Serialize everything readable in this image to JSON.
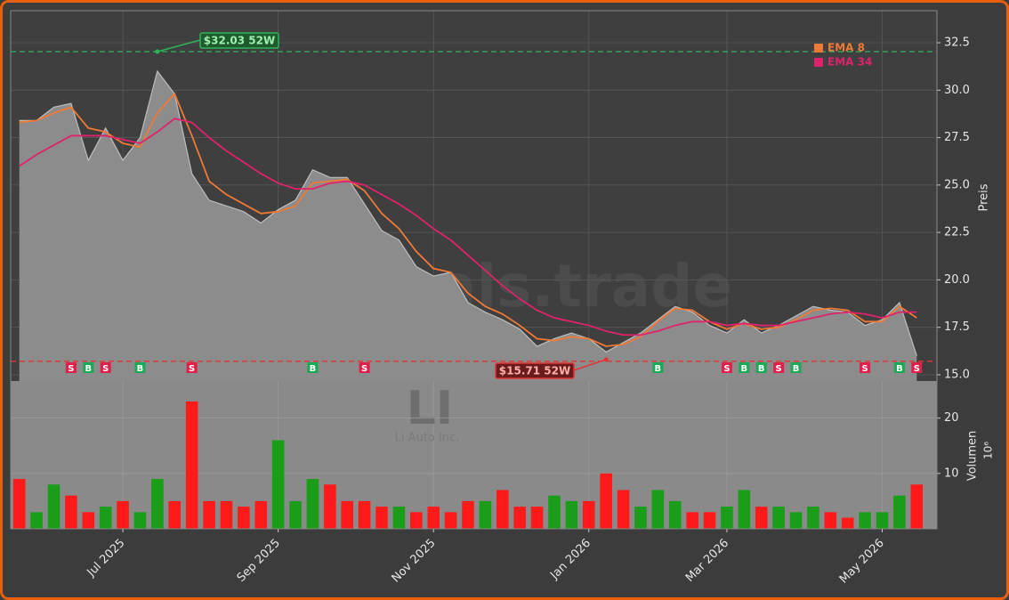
{
  "chart_data": [
    {
      "type": "area",
      "categories": [
        null,
        null,
        null,
        null,
        null,
        null,
        "Jul 2025",
        null,
        null,
        null,
        null,
        null,
        null,
        null,
        null,
        "Sep 2025",
        null,
        null,
        null,
        null,
        null,
        null,
        null,
        null,
        "Nov 2025",
        null,
        null,
        null,
        null,
        null,
        null,
        null,
        null,
        "Jan 2026",
        null,
        null,
        null,
        null,
        null,
        null,
        null,
        "Mar 2026",
        null,
        null,
        null,
        null,
        null,
        null,
        null,
        null,
        "May 2026",
        null,
        null
      ],
      "series": [
        {
          "color": "#8c8c8c",
          "values": [
            28.4,
            28.4,
            29.1,
            29.3,
            26.3,
            28.0,
            26.3,
            27.5,
            31.0,
            29.8,
            25.6,
            24.2,
            23.9,
            23.6,
            23.0,
            23.7,
            24.2,
            25.8,
            25.4,
            25.4,
            24.0,
            22.6,
            22.1,
            20.7,
            20.2,
            20.4,
            18.8,
            18.3,
            17.9,
            17.4,
            16.5,
            16.9,
            17.2,
            16.9,
            16.2,
            16.7,
            17.2,
            17.9,
            18.6,
            18.3,
            17.6,
            17.2,
            17.9,
            17.2,
            17.6,
            18.1,
            18.6,
            18.4,
            18.3,
            17.6,
            17.9,
            18.8,
            16.0
          ]
        },
        {
          "name": "EMA 8",
          "color": "#f07a35",
          "values": [
            28.3,
            28.4,
            28.8,
            29.1,
            28.0,
            27.8,
            27.2,
            27.0,
            28.8,
            29.8,
            27.6,
            25.2,
            24.5,
            24.0,
            23.5,
            23.6,
            23.9,
            25.1,
            25.2,
            25.3,
            24.7,
            23.5,
            22.7,
            21.5,
            20.6,
            20.4,
            19.3,
            18.6,
            18.2,
            17.6,
            16.9,
            16.8,
            17.0,
            16.9,
            16.5,
            16.6,
            17.0,
            17.8,
            18.5,
            18.4,
            17.8,
            17.4,
            17.7,
            17.4,
            17.5,
            17.9,
            18.4,
            18.5,
            18.4,
            17.8,
            17.8,
            18.6,
            18.0
          ]
        },
        {
          "name": "EMA 34",
          "color": "#e0226c",
          "values": [
            26.0,
            26.6,
            27.1,
            27.6,
            27.6,
            27.6,
            27.4,
            27.2,
            27.8,
            28.5,
            28.3,
            27.5,
            26.8,
            26.2,
            25.6,
            25.1,
            24.8,
            24.8,
            25.1,
            25.2,
            25.0,
            24.5,
            24.0,
            23.4,
            22.7,
            22.1,
            21.3,
            20.5,
            19.7,
            19.0,
            18.4,
            18.0,
            17.8,
            17.6,
            17.3,
            17.1,
            17.1,
            17.3,
            17.6,
            17.8,
            17.8,
            17.6,
            17.7,
            17.6,
            17.6,
            17.8,
            18.0,
            18.2,
            18.3,
            18.2,
            18.0,
            18.3,
            18.3
          ]
        }
      ],
      "ylabel": "Preis",
      "ylim": [
        14.67,
        34.19
      ],
      "yticks": [
        {
          "value": 15,
          "label": "15.0"
        },
        17.5,
        {
          "value": 20,
          "label": "20.0"
        },
        22.5,
        {
          "value": 25,
          "label": "25.0"
        },
        27.5,
        {
          "value": 30,
          "label": "30.0"
        },
        32.5
      ],
      "grid": true,
      "legend": "top-right",
      "high": {
        "value": 32.03,
        "label": "$32.03 52W"
      },
      "low": {
        "value": 15.71,
        "label": "$15.71 52W"
      },
      "signals": [
        null,
        null,
        null,
        "S",
        "B",
        "S",
        null,
        "B",
        null,
        null,
        "S",
        null,
        null,
        null,
        null,
        null,
        null,
        "B",
        null,
        null,
        "S",
        null,
        null,
        null,
        null,
        null,
        null,
        null,
        null,
        null,
        null,
        null,
        null,
        null,
        null,
        null,
        null,
        "B",
        null,
        null,
        null,
        "S",
        "B",
        "B",
        "S",
        "B",
        null,
        null,
        null,
        "S",
        null,
        "B",
        "S"
      ],
      "watermark": "forexsignals.trade",
      "symbol": "LI",
      "company": "Li Auto Inc."
    },
    {
      "type": "bar",
      "values": [
        9,
        3,
        8,
        6,
        3,
        4,
        5,
        3,
        9,
        5,
        23,
        5,
        5,
        4,
        5,
        16,
        5,
        9,
        8,
        5,
        5,
        4,
        4,
        3,
        4,
        3,
        5,
        5,
        7,
        4,
        4,
        6,
        5,
        5,
        10,
        7,
        4,
        7,
        5,
        3,
        3,
        4,
        7,
        4,
        4,
        3,
        4,
        3,
        2,
        3,
        3,
        6,
        8
      ],
      "colors": [
        "#ff1a1a",
        "#1a9e1a",
        "#1a9e1a",
        "#ff1a1a",
        "#ff1a1a",
        "#1a9e1a",
        "#ff1a1a",
        "#1a9e1a",
        "#1a9e1a",
        "#ff1a1a",
        "#ff1a1a",
        "#ff1a1a",
        "#ff1a1a",
        "#ff1a1a",
        "#ff1a1a",
        "#1a9e1a",
        "#1a9e1a",
        "#1a9e1a",
        "#ff1a1a",
        "#ff1a1a",
        "#ff1a1a",
        "#ff1a1a",
        "#1a9e1a",
        "#ff1a1a",
        "#ff1a1a",
        "#ff1a1a",
        "#ff1a1a",
        "#1a9e1a",
        "#ff1a1a",
        "#ff1a1a",
        "#ff1a1a",
        "#1a9e1a",
        "#1a9e1a",
        "#ff1a1a",
        "#ff1a1a",
        "#ff1a1a",
        "#1a9e1a",
        "#1a9e1a",
        "#1a9e1a",
        "#ff1a1a",
        "#ff1a1a",
        "#1a9e1a",
        "#1a9e1a",
        "#ff1a1a",
        "#1a9e1a",
        "#1a9e1a",
        "#1a9e1a",
        "#ff1a1a",
        "#ff1a1a",
        "#1a9e1a",
        "#1a9e1a",
        "#1a9e1a",
        "#ff1a1a"
      ],
      "ylabel": "Volumen",
      "scale_label": "10⁶",
      "ylim": [
        0,
        26.7
      ],
      "yticks": [
        10,
        20
      ],
      "grid": true
    }
  ]
}
